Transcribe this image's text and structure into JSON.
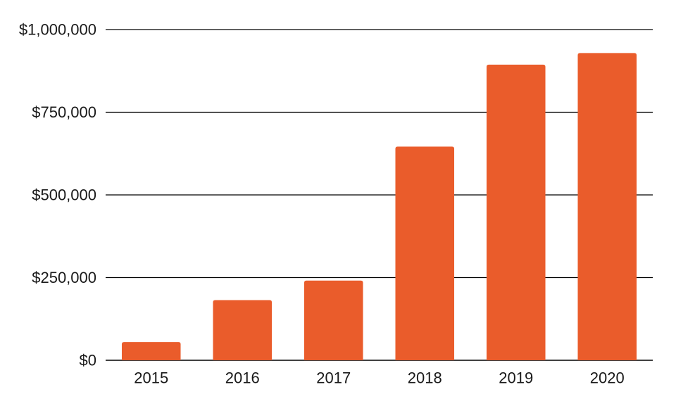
{
  "chart_data": {
    "type": "bar",
    "title": "",
    "xlabel": "",
    "ylabel": "",
    "categories": [
      "2015",
      "2016",
      "2017",
      "2018",
      "2019",
      "2020"
    ],
    "values": [
      55000,
      182000,
      241000,
      646000,
      894000,
      929000
    ],
    "ylim": [
      0,
      1000000
    ],
    "yticks": [
      0,
      250000,
      500000,
      750000,
      1000000
    ],
    "ytick_labels": [
      "$0",
      "$250,000",
      "$500,000",
      "$750,000",
      "$1,000,000"
    ],
    "grid": true,
    "legend": "none",
    "bar_color": "#EA5C2B",
    "grid_color": "#000000"
  }
}
